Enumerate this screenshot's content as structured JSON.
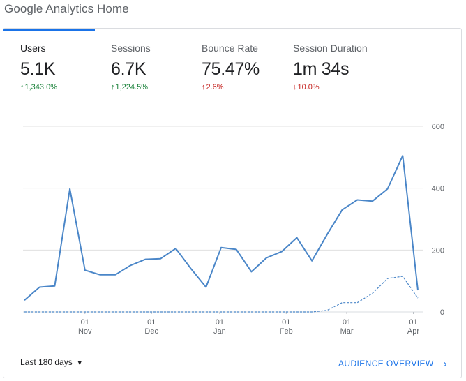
{
  "page": {
    "title": "Google Analytics Home"
  },
  "metrics": [
    {
      "label": "Users",
      "value": "5.1K",
      "change": "1,343.0%",
      "direction": "up",
      "tone": "good",
      "selected": true
    },
    {
      "label": "Sessions",
      "value": "6.7K",
      "change": "1,224.5%",
      "direction": "up",
      "tone": "good",
      "selected": false
    },
    {
      "label": "Bounce Rate",
      "value": "75.47%",
      "change": "2.6%",
      "direction": "up",
      "tone": "bad",
      "selected": false
    },
    {
      "label": "Session Duration",
      "value": "1m 34s",
      "change": "10.0%",
      "direction": "down",
      "tone": "bad",
      "selected": false
    }
  ],
  "colors": {
    "accent": "#1a73e8",
    "line": "#4a86c8",
    "positive": "#188038",
    "negative": "#c5221f",
    "grid": "#e0e0e0"
  },
  "chart_data": {
    "type": "line",
    "y_ticks": [
      0,
      200,
      400,
      600
    ],
    "ylim": [
      0,
      600
    ],
    "grid": true,
    "x_tick_labels": [
      {
        "day": "01",
        "month": "Nov",
        "week_index": 4
      },
      {
        "day": "01",
        "month": "Dec",
        "week_index": 8.4
      },
      {
        "day": "01",
        "month": "Jan",
        "week_index": 12.9
      },
      {
        "day": "01",
        "month": "Feb",
        "week_index": 17.3
      },
      {
        "day": "01",
        "month": "Mar",
        "week_index": 21.3
      },
      {
        "day": "01",
        "month": "Apr",
        "week_index": 25.7
      }
    ],
    "series": [
      {
        "style": "solid",
        "values": [
          38,
          80,
          84,
          398,
          135,
          120,
          120,
          150,
          170,
          172,
          205,
          140,
          80,
          208,
          202,
          130,
          175,
          195,
          240,
          165,
          250,
          330,
          362,
          358,
          398,
          505,
          70
        ]
      },
      {
        "style": "dashed",
        "values": [
          0,
          0,
          0,
          0,
          0,
          0,
          0,
          0,
          0,
          0,
          0,
          0,
          0,
          0,
          0,
          0,
          0,
          0,
          0,
          0,
          5,
          30,
          30,
          60,
          108,
          115,
          45
        ]
      }
    ]
  },
  "footer": {
    "date_range": "Last 180 days",
    "link": "AUDIENCE OVERVIEW"
  }
}
